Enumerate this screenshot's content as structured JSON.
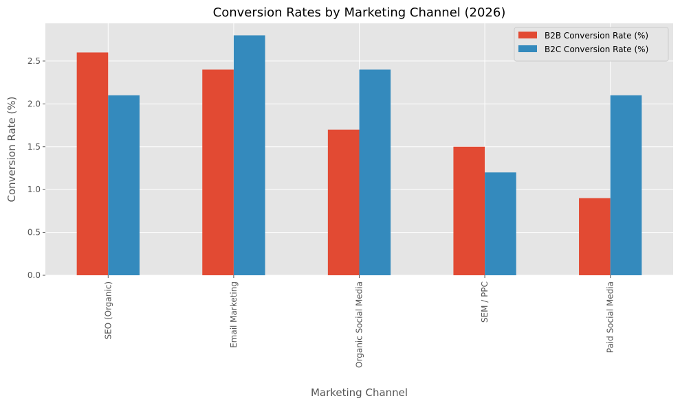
{
  "chart_data": {
    "type": "bar",
    "title": "Conversion Rates by Marketing Channel (2026)",
    "xlabel": "Marketing Channel",
    "ylabel": "Conversion Rate (%)",
    "categories": [
      "SEO (Organic)",
      "Email Marketing",
      "Organic Social Media",
      "SEM / PPC",
      "Paid Social Media"
    ],
    "series": [
      {
        "name": "B2B Conversion Rate (%)",
        "values": [
          2.6,
          2.4,
          1.7,
          1.5,
          0.9
        ],
        "color": "#E24A33"
      },
      {
        "name": "B2C Conversion Rate (%)",
        "values": [
          2.1,
          2.8,
          2.4,
          1.2,
          2.1
        ],
        "color": "#348ABD"
      }
    ],
    "ylim": [
      0,
      2.94
    ],
    "yticks": [
      "0.0",
      "0.5",
      "1.0",
      "1.5",
      "2.0",
      "2.5"
    ],
    "grid": true,
    "legend_position": "top-right",
    "colors": {
      "plot_background": "#E5E5E5",
      "grid": "#FFFFFF"
    }
  }
}
